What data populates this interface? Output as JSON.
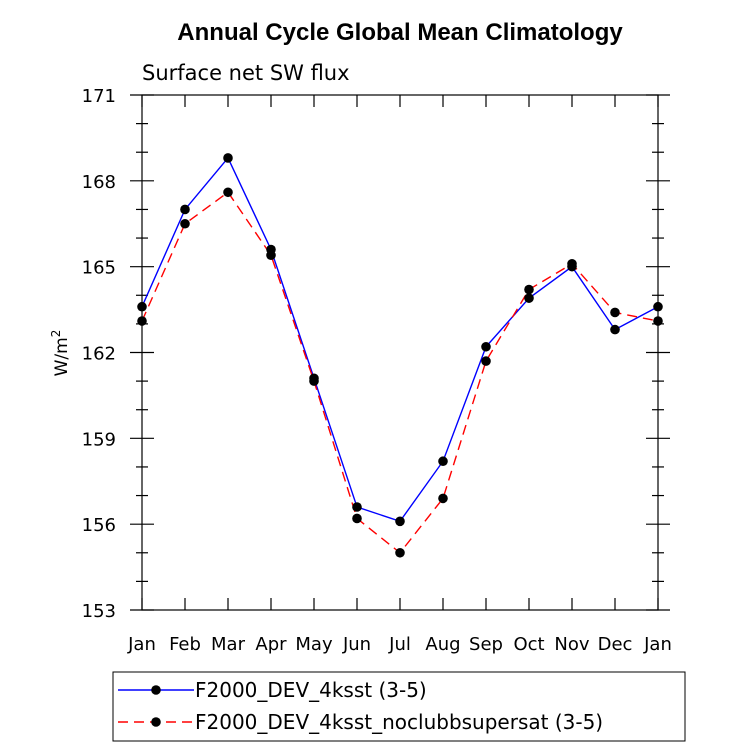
{
  "chart_data": {
    "type": "line",
    "title": "Annual Cycle Global Mean Climatology",
    "subtitle": "Surface net SW flux",
    "ylabel_main": "W/m",
    "ylabel_sup": "2",
    "xlabel": "",
    "ylim": [
      153,
      171
    ],
    "yticks": [
      153,
      156,
      159,
      162,
      165,
      168,
      171
    ],
    "ytick_labels": [
      "153",
      "156",
      "159",
      "162",
      "165",
      "168",
      "171"
    ],
    "categories": [
      "Jan",
      "Feb",
      "Mar",
      "Apr",
      "May",
      "Jun",
      "Jul",
      "Aug",
      "Sep",
      "Oct",
      "Nov",
      "Dec",
      "Jan"
    ],
    "grid": false,
    "legend_placement": "bottom",
    "series": [
      {
        "name": "F2000_DEV_4ksst (3-5)",
        "color": "#0000ff",
        "dash": "solid",
        "values": [
          163.6,
          167.0,
          168.8,
          165.6,
          161.1,
          156.6,
          156.1,
          158.2,
          162.2,
          163.9,
          165.0,
          162.8,
          163.6
        ]
      },
      {
        "name": "F2000_DEV_4ksst_noclubbsupersat (3-5)",
        "color": "#ff0000",
        "dash": "dashed",
        "values": [
          163.1,
          166.5,
          167.6,
          165.4,
          161.0,
          156.2,
          155.0,
          156.9,
          161.7,
          164.2,
          165.1,
          163.4,
          163.1
        ]
      }
    ]
  }
}
